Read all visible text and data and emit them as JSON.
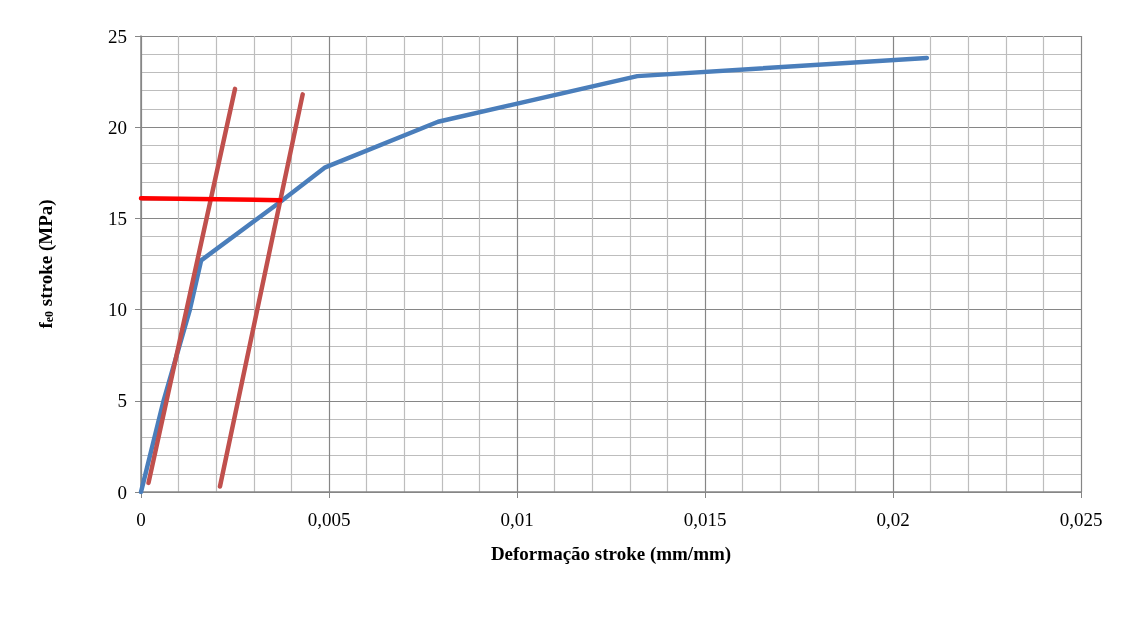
{
  "chart_data": {
    "type": "line",
    "xlabel": "Deformação stroke (mm/mm)",
    "ylabel": "f$_{e0}$ stroke (MPa)",
    "xlim": [
      0,
      0.025
    ],
    "xticks": [
      0,
      {
        "value": 0.005,
        "label": "0,005"
      },
      {
        "value": 0.01,
        "label": "0,01"
      },
      {
        "value": 0.015,
        "label": "0,015"
      },
      {
        "value": 0.02,
        "label": "0,02"
      },
      {
        "value": 0.025,
        "label": "0,025"
      }
    ],
    "ylim": [
      0,
      25
    ],
    "yticks": [
      0,
      5,
      10,
      15,
      20,
      25
    ],
    "grid": true,
    "marker": "none",
    "line_style": "solid",
    "series": [
      {
        "color": "#4a7ebb",
        "x": [
          0,
          0.0006,
          0.0013,
          0.0016,
          0.0037,
          0.0049,
          0.0079,
          0.0132,
          0.0209
        ],
        "values": [
          0,
          5,
          10,
          12.7,
          15.9,
          17.8,
          20.3,
          22.8,
          23.8
        ]
      },
      {
        "color": "#c0504d",
        "x": [
          0.0002,
          0.0025
        ],
        "values": [
          0.5,
          22.1
        ]
      },
      {
        "color": "#c0504d",
        "x": [
          0.0021,
          0.0043
        ],
        "values": [
          0.3,
          21.8
        ]
      },
      {
        "color": "#ff0000",
        "x": [
          0,
          0.0037
        ],
        "values": [
          16.1,
          16
        ]
      }
    ]
  }
}
